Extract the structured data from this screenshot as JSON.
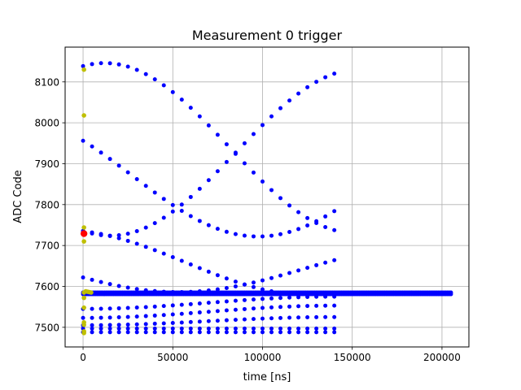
{
  "chart_data": {
    "type": "scatter",
    "title": "Measurement 0 trigger",
    "xlabel": "time [ns]",
    "ylabel": "ADC Code",
    "xlim": [
      -10000,
      215000
    ],
    "ylim": [
      7452,
      8185
    ],
    "xticks": [
      0,
      50000,
      100000,
      150000,
      200000
    ],
    "xtick_labels": [
      "0",
      "50000",
      "100000",
      "150000",
      "200000"
    ],
    "yticks": [
      7500,
      7600,
      7700,
      7800,
      7900,
      8000,
      8100
    ],
    "ytick_labels": [
      "7500",
      "7600",
      "7700",
      "7800",
      "7900",
      "8000",
      "8100"
    ],
    "grid": true,
    "series_styles": [
      {
        "color": "#0000ff",
        "radius": 2.5
      },
      {
        "color": "#bfbf00",
        "radius": 2.8
      },
      {
        "color": "#ff0000",
        "radius": 4.2
      }
    ],
    "series": [
      {
        "curves": [
          {
            "kind": "cos",
            "x0": 0,
            "x1": 140000,
            "step": 5000,
            "mean": 7938,
            "amp": 208,
            "period": 280000,
            "phase": -0.27
          },
          {
            "kind": "cos",
            "x0": 0,
            "x1": 140000,
            "step": 5000,
            "mean": 7870,
            "amp": 148,
            "period": 280000,
            "phase": 0.95
          },
          {
            "kind": "cos",
            "x0": 0,
            "x1": 140000,
            "step": 5000,
            "mean": 7928,
            "amp": 204,
            "period": 280000,
            "phase": 2.8
          },
          {
            "kind": "cos",
            "x0": 0,
            "x1": 140000,
            "step": 5000,
            "mean": 7658,
            "amp": 80,
            "period": 280000,
            "phase": 0.28
          },
          {
            "kind": "cos",
            "x0": 0,
            "x1": 140000,
            "step": 5000,
            "mean": 7643,
            "amp": 57,
            "period": 280000,
            "phase": 1.95
          },
          {
            "kind": "cos",
            "x0": 0,
            "x1": 140000,
            "step": 5000,
            "mean": 7560,
            "amp": 15,
            "period": 280000,
            "phase": 3.14
          },
          {
            "kind": "cos",
            "x0": 0,
            "x1": 140000,
            "step": 5000,
            "mean": 7538,
            "amp": 15,
            "period": 280000,
            "phase": 3.14
          },
          {
            "kind": "cos",
            "x0": 0,
            "x1": 140000,
            "step": 5000,
            "mean": 7515,
            "amp": 10,
            "period": 280000,
            "phase": 3.14
          },
          {
            "kind": "flat",
            "x0": 0,
            "x1": 140000,
            "step": 5000,
            "y": 7488
          },
          {
            "kind": "flat",
            "x0": 0,
            "x1": 140000,
            "step": 5000,
            "y": 7497
          },
          {
            "kind": "flat",
            "x0": 0,
            "x1": 205000,
            "step": 1000,
            "y": 7581
          },
          {
            "kind": "flat",
            "x0": 0,
            "x1": 205000,
            "step": 1000,
            "y": 7585
          }
        ]
      },
      {
        "points": [
          [
            500,
            8130
          ],
          [
            500,
            8018
          ],
          [
            500,
            7744
          ],
          [
            500,
            7710
          ],
          [
            500,
            7585
          ],
          [
            500,
            7572
          ],
          [
            500,
            7548
          ],
          [
            500,
            7512
          ],
          [
            500,
            7506
          ],
          [
            500,
            7490
          ],
          [
            500,
            7486
          ],
          [
            1500,
            7588
          ],
          [
            2500,
            7587
          ],
          [
            3500,
            7586
          ],
          [
            4500,
            7585
          ]
        ]
      },
      {
        "points": [
          [
            500,
            7729
          ]
        ]
      }
    ]
  }
}
